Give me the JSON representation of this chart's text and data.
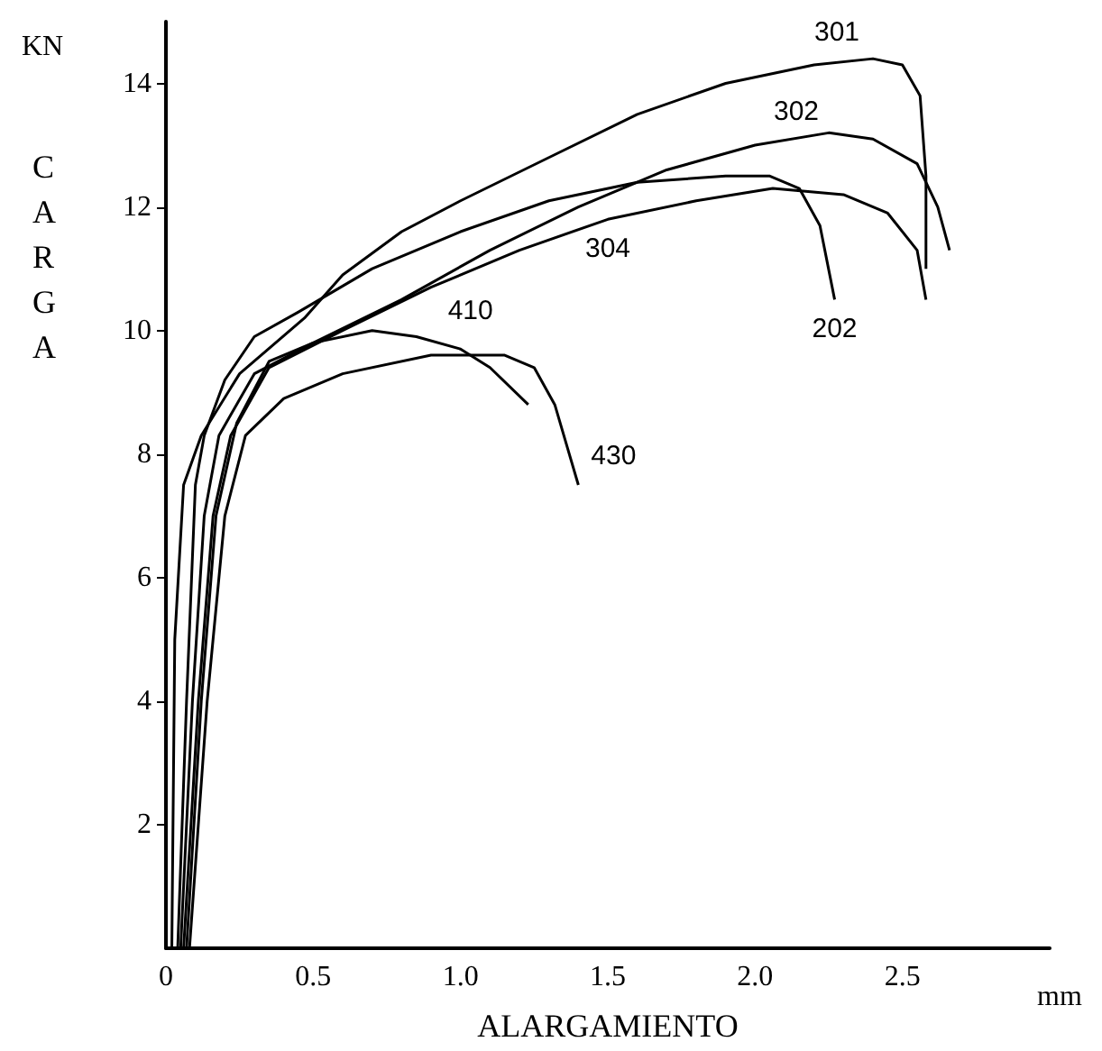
{
  "chart_data": {
    "type": "line",
    "xlabel": "ALARGAMIENTO",
    "ylabel": "CARGA",
    "annotations": [
      "KN",
      "mm"
    ],
    "xlim": [
      0,
      3
    ],
    "xticks": [
      0,
      0.5,
      {
        "value": 1,
        "label": "1.0"
      },
      1.5,
      {
        "value": 2,
        "label": "2.0"
      },
      2.5
    ],
    "ylim": [
      0,
      15
    ],
    "yticks": [
      2,
      4,
      6,
      8,
      10,
      12,
      14
    ],
    "grid": false,
    "legend": false,
    "marker": "none",
    "line_style": "solid",
    "series": [
      {
        "name": "301",
        "color": "#000000",
        "x": [
          0.02,
          0.03,
          0.06,
          0.12,
          0.25,
          0.47,
          0.6,
          0.8,
          1.0,
          1.3,
          1.6,
          1.9,
          2.2,
          2.4,
          2.5,
          2.56,
          2.58,
          2.58
        ],
        "values": [
          0,
          5,
          7.5,
          8.3,
          9.3,
          10.2,
          10.9,
          11.6,
          12.1,
          12.8,
          13.5,
          14.0,
          14.3,
          14.4,
          14.3,
          13.8,
          12.5,
          11.0
        ]
      },
      {
        "name": "302",
        "color": "#000000",
        "x": [
          0.05,
          0.09,
          0.13,
          0.18,
          0.3,
          0.5,
          0.8,
          1.1,
          1.4,
          1.7,
          2.0,
          2.25,
          2.4,
          2.55,
          2.62,
          2.66
        ],
        "values": [
          0,
          4,
          7,
          8.3,
          9.3,
          9.8,
          10.5,
          11.3,
          12.0,
          12.6,
          13.0,
          13.2,
          13.1,
          12.7,
          12.0,
          11.3
        ]
      },
      {
        "name": "304",
        "color": "#000000",
        "x": [
          0.06,
          0.11,
          0.16,
          0.22,
          0.35,
          0.6,
          0.9,
          1.2,
          1.5,
          1.8,
          2.06,
          2.3,
          2.45,
          2.55,
          2.58
        ],
        "values": [
          0,
          4,
          7,
          8.3,
          9.4,
          10.0,
          10.7,
          11.3,
          11.8,
          12.1,
          12.3,
          12.2,
          11.9,
          11.3,
          10.5
        ]
      },
      {
        "name": "202",
        "color": "#000000",
        "x": [
          0.04,
          0.07,
          0.1,
          0.13,
          0.2,
          0.3,
          0.45,
          0.7,
          1.0,
          1.3,
          1.6,
          1.9,
          2.05,
          2.15,
          2.22,
          2.27
        ],
        "values": [
          0,
          4,
          7.5,
          8.3,
          9.2,
          9.9,
          10.3,
          11.0,
          11.6,
          12.1,
          12.4,
          12.5,
          12.5,
          12.3,
          11.7,
          10.5
        ]
      },
      {
        "name": "410",
        "color": "#000000",
        "x": [
          0.07,
          0.12,
          0.17,
          0.24,
          0.35,
          0.5,
          0.7,
          0.85,
          1.0,
          1.1,
          1.23
        ],
        "values": [
          0,
          4,
          7,
          8.5,
          9.5,
          9.8,
          10.0,
          9.9,
          9.7,
          9.4,
          8.8
        ]
      },
      {
        "name": "430",
        "color": "#000000",
        "x": [
          0.08,
          0.14,
          0.2,
          0.27,
          0.4,
          0.6,
          0.9,
          1.15,
          1.25,
          1.32,
          1.4
        ],
        "values": [
          0,
          4,
          7,
          8.3,
          8.9,
          9.3,
          9.6,
          9.6,
          9.4,
          8.8,
          7.5
        ]
      }
    ]
  }
}
